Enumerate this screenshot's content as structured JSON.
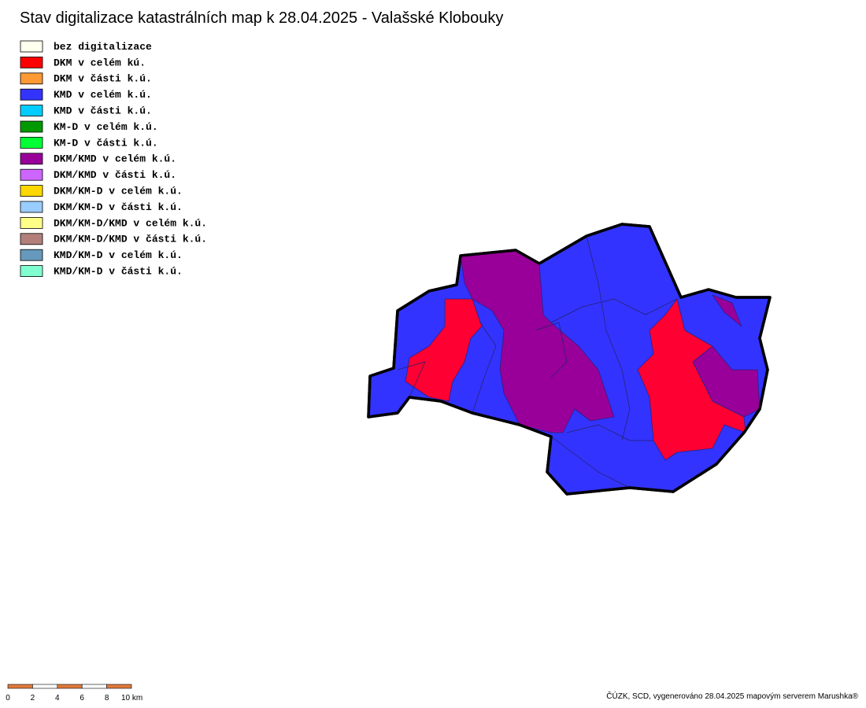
{
  "title": "Stav digitalizace katastrálních map k 28.04.2025 - Valašské Klobouky",
  "legend": {
    "items": [
      {
        "label": "bez digitalizace",
        "color": "#ffffee"
      },
      {
        "label": "DKM v celém kú.",
        "color": "#ff0000"
      },
      {
        "label": "DKM v části k.ú.",
        "color": "#ff9933"
      },
      {
        "label": "KMD v celém k.ú.",
        "color": "#3333ff"
      },
      {
        "label": "KMD v části k.ú.",
        "color": "#00ccff"
      },
      {
        "label": "KM-D v celém k.ú.",
        "color": "#009900"
      },
      {
        "label": "KM-D v části k.ú.",
        "color": "#00ff33"
      },
      {
        "label": "DKM/KMD v celém k.ú.",
        "color": "#990099"
      },
      {
        "label": "DKM/KMD v části k.ú.",
        "color": "#cc66ff"
      },
      {
        "label": "DKM/KM-D v celém k.ú.",
        "color": "#ffd700"
      },
      {
        "label": "DKM/KM-D v části k.ú.",
        "color": "#99ccff"
      },
      {
        "label": "DKM/KM-D/KMD v celém k.ú.",
        "color": "#ffff88"
      },
      {
        "label": "DKM/KM-D/KMD v části k.ú.",
        "color": "#b37f7a"
      },
      {
        "label": "KMD/KM-D v celém k.ú.",
        "color": "#6699bb"
      },
      {
        "label": "KMD/KM-D v části k.ú.",
        "color": "#80ffd0"
      }
    ]
  },
  "scale_bar": {
    "labels": [
      "0",
      "2",
      "4",
      "6",
      "8",
      "10 km"
    ]
  },
  "footer": {
    "credit": "ČÚZK, SCD, vygenerováno 28.04.2025 mapovým serverem Marushka®"
  }
}
